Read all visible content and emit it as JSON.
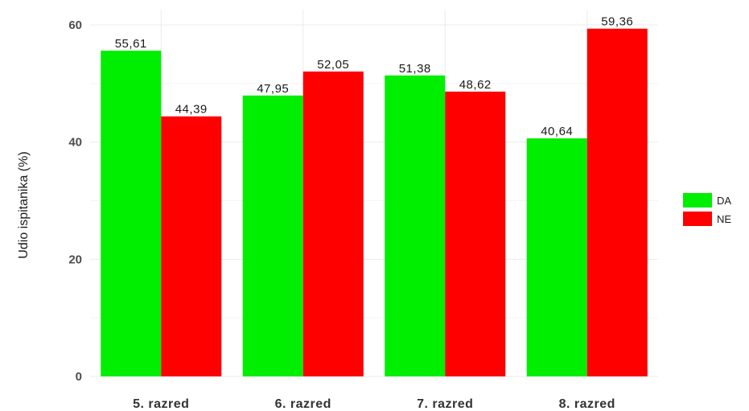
{
  "chart_data": {
    "type": "bar",
    "categories": [
      "5. razred",
      "6. razred",
      "7. razred",
      "8. razred"
    ],
    "series": [
      {
        "name": "DA",
        "color": "#00ee00",
        "values": [
          55.61,
          47.95,
          51.38,
          40.64
        ],
        "labels": [
          "55,61",
          "47,95",
          "51,38",
          "40,64"
        ]
      },
      {
        "name": "NE",
        "color": "#ff0000",
        "values": [
          44.39,
          52.05,
          48.62,
          59.36
        ],
        "labels": [
          "44,39",
          "52,05",
          "48,62",
          "59,36"
        ]
      }
    ],
    "title": "",
    "xlabel": "",
    "ylabel": "Udio ispitanika (%)",
    "ylim": [
      0,
      61
    ],
    "yticks": [
      0,
      20,
      40,
      60
    ],
    "grid": true,
    "legend_position": "right"
  }
}
